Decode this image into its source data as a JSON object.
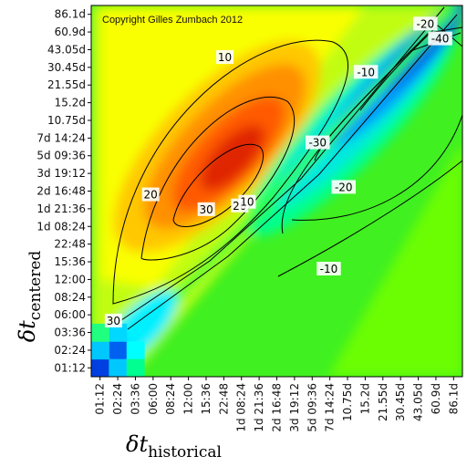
{
  "chart_data": {
    "type": "heatmap",
    "title": "",
    "copyright": "Copyright Gilles Zumbach 2012",
    "x_ticks": [
      "01:12",
      "02:24",
      "03:36",
      "06:00",
      "08:24",
      "12:00",
      "15:36",
      "22:48",
      "1d 08:24",
      "1d 21:36",
      "2d 16:48",
      "3d 19:12",
      "5d 09:36",
      "7d 14:24",
      "10.75d",
      "15.2d",
      "21.55d",
      "30.45d",
      "43.05d",
      "60.9d",
      "86.1d"
    ],
    "y_ticks": [
      "01:12",
      "02:24",
      "03:36",
      "06:00",
      "08:24",
      "12:00",
      "15:36",
      "22:48",
      "1d 08:24",
      "1d 21:36",
      "2d 16:48",
      "3d 19:12",
      "5d 09:36",
      "7d 14:24",
      "10.75d",
      "15.2d",
      "21.55d",
      "30.45d",
      "43.05d",
      "60.9d",
      "86.1d"
    ],
    "xlabel": {
      "main": "δt",
      "sub": "historical"
    },
    "ylabel": {
      "main": "δt",
      "sub": "centered"
    },
    "contour_labels": [
      {
        "text": "10",
        "u": 0.36,
        "v": 0.86
      },
      {
        "text": "20",
        "u": 0.16,
        "v": 0.49
      },
      {
        "text": "30",
        "u": 0.31,
        "v": 0.45
      },
      {
        "text": "20",
        "u": 0.4,
        "v": 0.46
      },
      {
        "text": "10",
        "u": 0.42,
        "v": 0.47
      },
      {
        "text": "30",
        "u": 0.06,
        "v": 0.15
      },
      {
        "text": "-20",
        "u": 0.9,
        "v": 0.95
      },
      {
        "text": "-40",
        "u": 0.94,
        "v": 0.91
      },
      {
        "text": "-10",
        "u": 0.74,
        "v": 0.82
      },
      {
        "text": "-30",
        "u": 0.61,
        "v": 0.63
      },
      {
        "text": "-20",
        "u": 0.68,
        "v": 0.51
      },
      {
        "text": "-10",
        "u": 0.64,
        "v": 0.29
      }
    ],
    "colorscale": [
      "#0030c8",
      "#0080ff",
      "#00d8ff",
      "#00ff80",
      "#40ff00",
      "#b8ff00",
      "#ffff00",
      "#ffb000",
      "#ff5000",
      "#d01000"
    ],
    "value_range": [
      -60,
      50
    ]
  }
}
